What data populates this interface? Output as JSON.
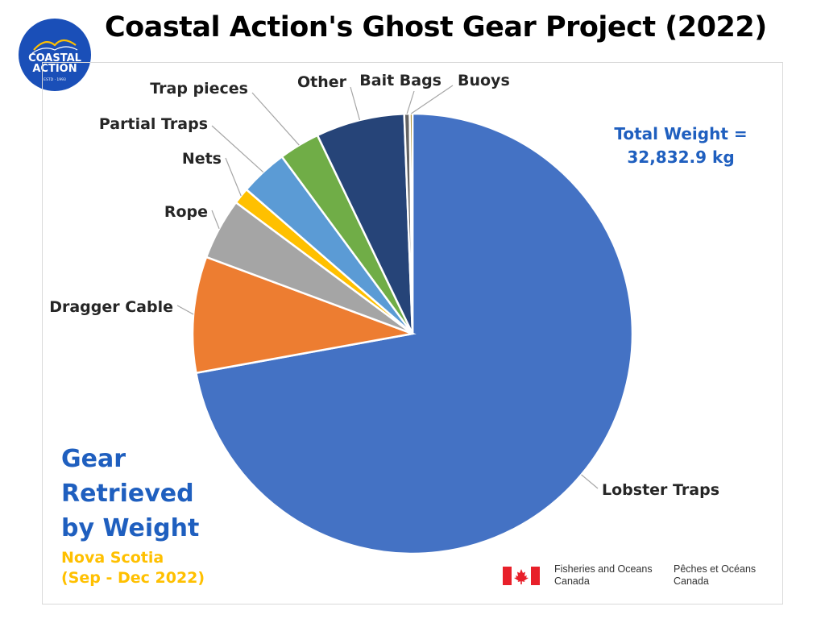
{
  "title": "Coastal Action's Ghost Gear Project (2022)",
  "logo": {
    "name": "COASTAL ACTION",
    "line1": "COASTAL",
    "line2": "ACTION",
    "arc_text": "CONSERVATION IS OUR MISSION",
    "established": "ESTD · 1993",
    "color": "#1a4fb8"
  },
  "total_weight": {
    "line1": "Total Weight =",
    "line2": "32,832.9 kg"
  },
  "subtitle": {
    "line1": "Gear",
    "line2": "Retrieved",
    "line3": "by Weight"
  },
  "region": {
    "line1": "Nova Scotia",
    "line2": "(Sep - Dec 2022)"
  },
  "dfo": {
    "en_line1": "Fisheries and Oceans",
    "en_line2": "Canada",
    "fr_line1": "Pêches et Océans",
    "fr_line2": "Canada",
    "flag_color": "#e8202a"
  },
  "chart_data": {
    "type": "pie",
    "title": "",
    "start": "12 o'clock",
    "direction": "clockwise",
    "slices": [
      {
        "label": "Lobster Traps",
        "value": 72.0,
        "color": "#4472c4"
      },
      {
        "label": "Dragger Cable",
        "value": 8.5,
        "color": "#ed7d31"
      },
      {
        "label": "Rope",
        "value": 4.5,
        "color": "#a5a5a5"
      },
      {
        "label": "Nets",
        "value": 1.2,
        "color": "#ffc000"
      },
      {
        "label": "Partial Traps",
        "value": 3.5,
        "color": "#5b9bd5"
      },
      {
        "label": "Trap pieces",
        "value": 3.0,
        "color": "#70ad47"
      },
      {
        "label": "Other",
        "value": 6.5,
        "color": "#264478"
      },
      {
        "label": "Bait Bags",
        "value": 0.4,
        "color": "#636363"
      },
      {
        "label": "Buoys",
        "value": 0.2,
        "color": "#997300"
      }
    ]
  }
}
